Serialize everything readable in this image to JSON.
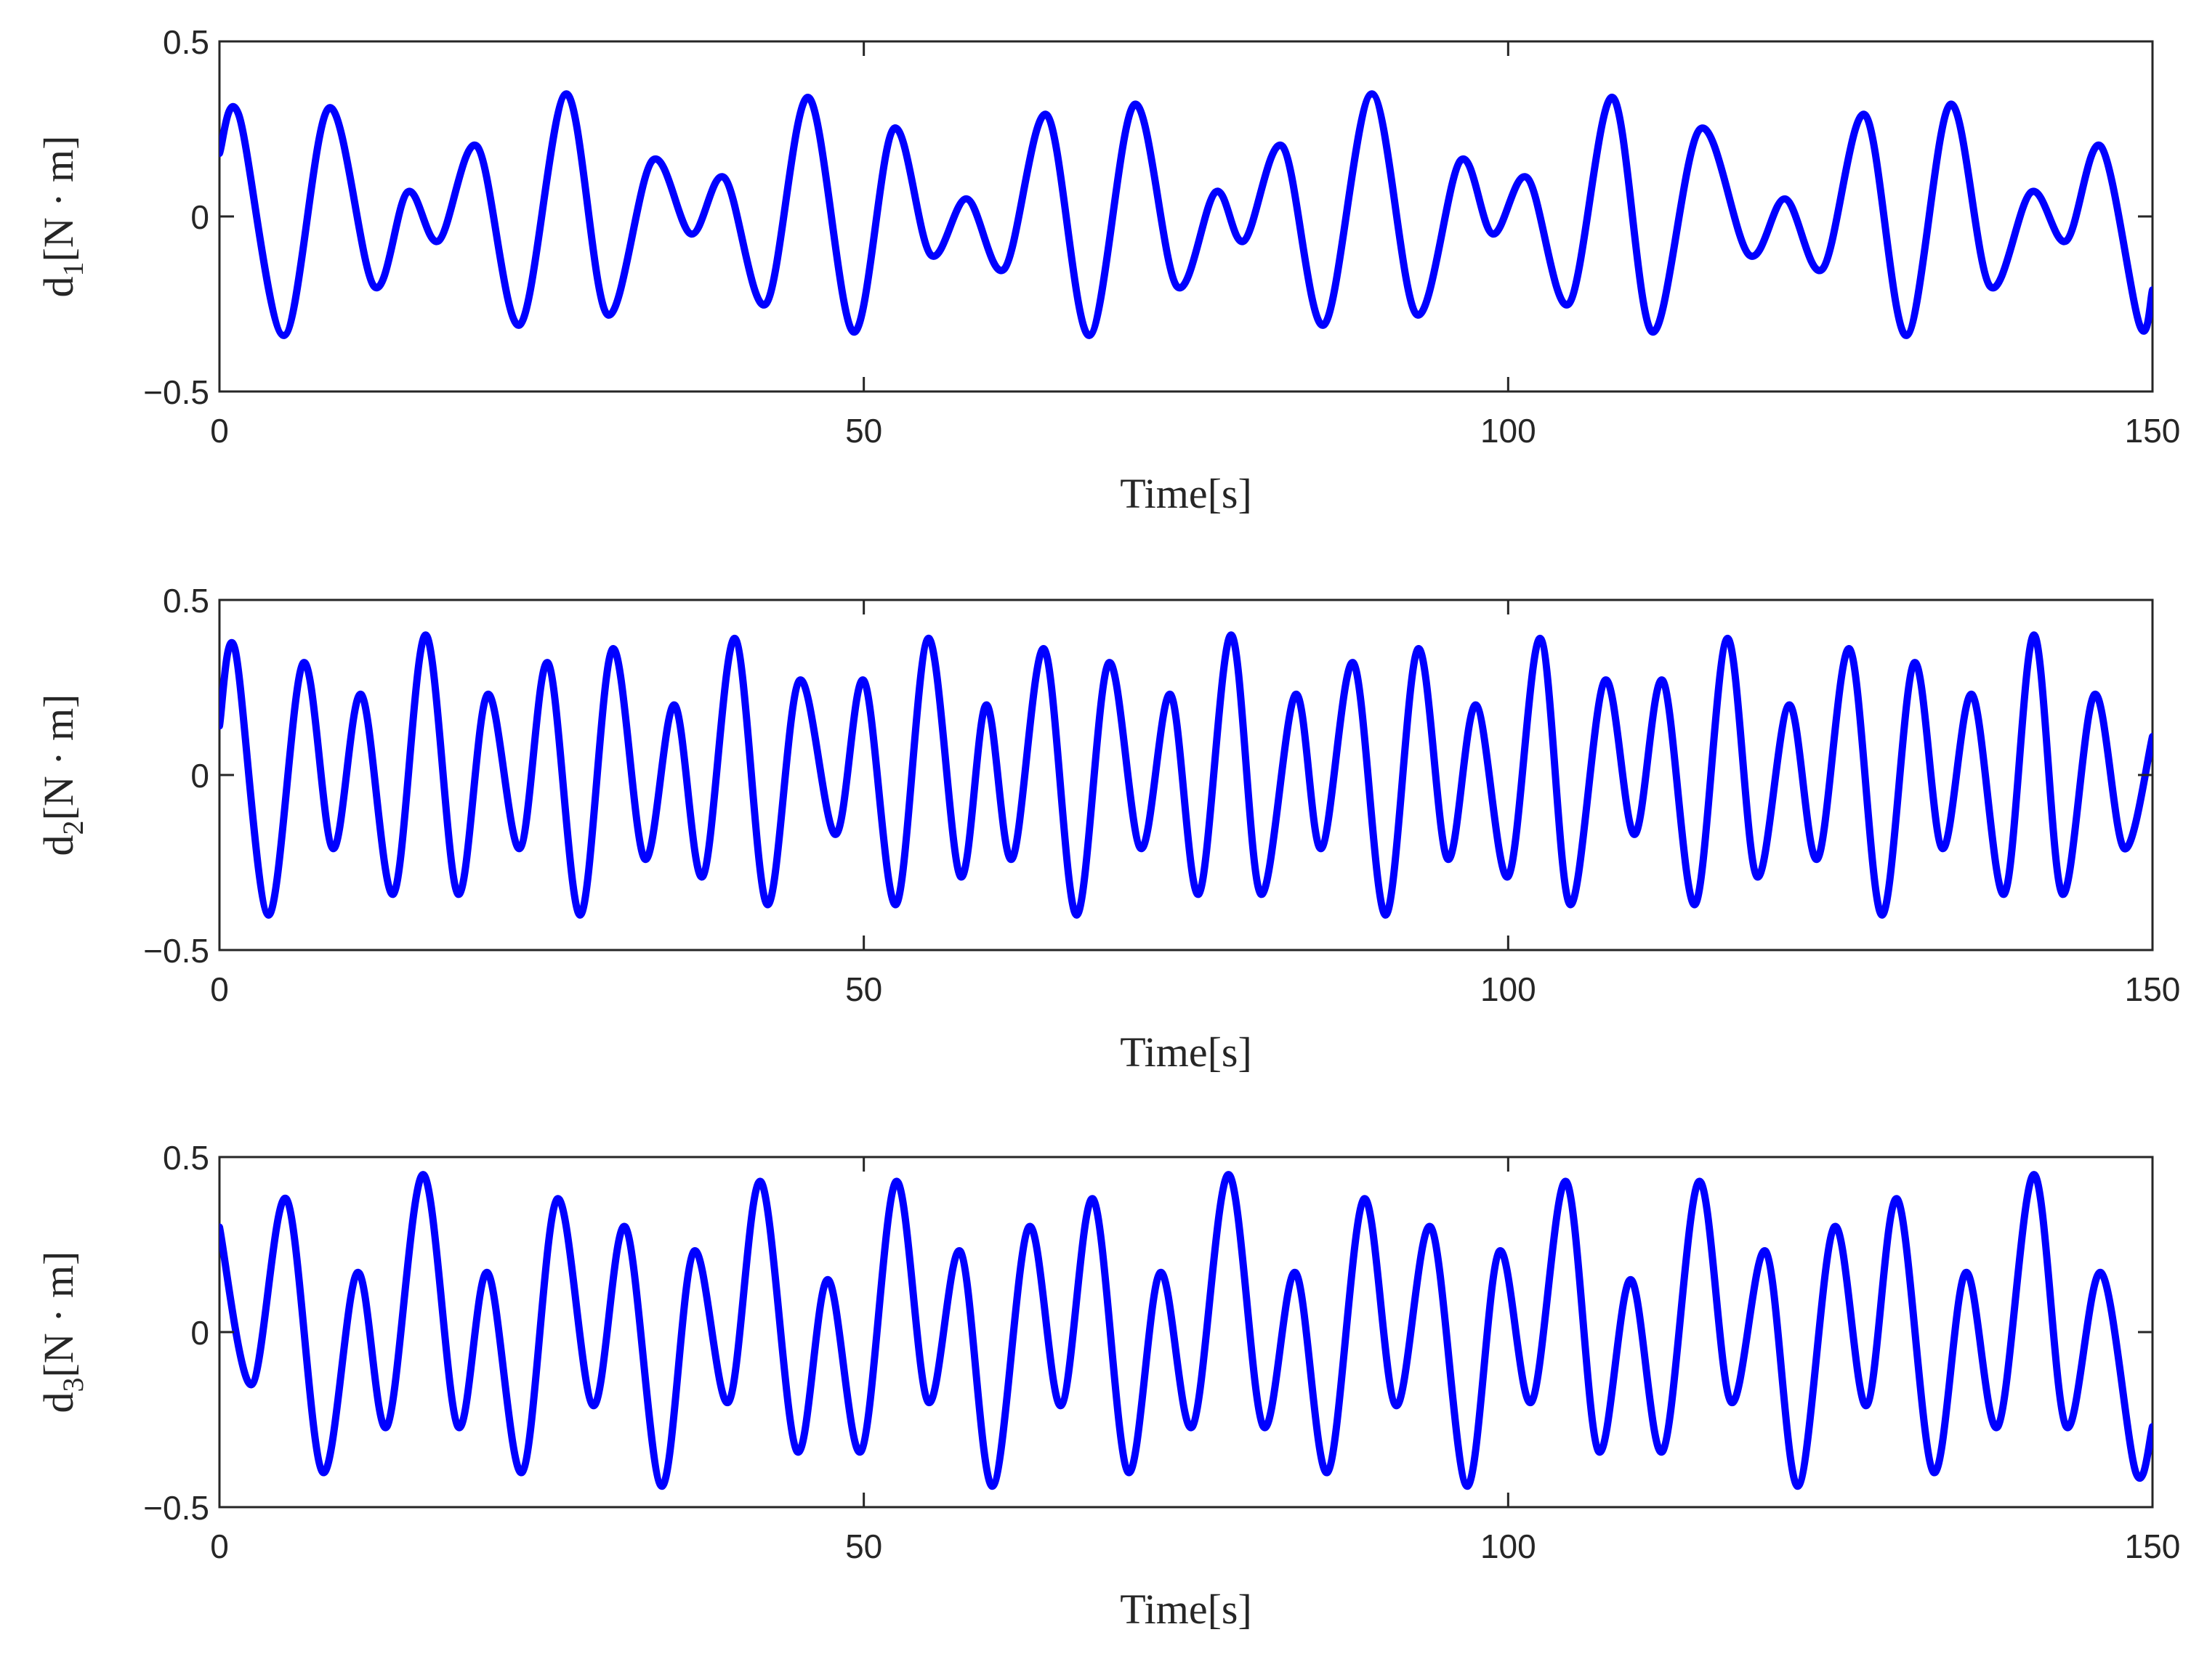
{
  "chart_data": [
    {
      "type": "line",
      "ylabel_main": "d",
      "ylabel_sub": "1",
      "ylabel_unit": "[N · m]",
      "xlabel": "Time[s]",
      "xlim": [
        0,
        150
      ],
      "ylim": [
        -0.5,
        0.5
      ],
      "xticks": [
        0,
        50,
        100,
        150
      ],
      "xtick_labels": [
        "0",
        "50",
        "100",
        "150"
      ],
      "yticks": [
        -0.5,
        0,
        0.5
      ],
      "ytick_labels": [
        "−0.5",
        "0",
        "0.5"
      ],
      "grid": false,
      "color": "#0000ff",
      "x": [
        0,
        1.5,
        5,
        8.5,
        12,
        14.6,
        17,
        20,
        23.3,
        26.9,
        30.1,
        33.6,
        36.6,
        39.2,
        42.4,
        45.7,
        49.2,
        52.3,
        55.2,
        58,
        60.9,
        64.2,
        67.5,
        71,
        74.3,
        77.3,
        79.5,
        82.5,
        85.7,
        89.4,
        92.9,
        96.3,
        98.8,
        101.5,
        104.7,
        108.1,
        111.2,
        114.9,
        118.7,
        121.5,
        124.4,
        127.7,
        130.9,
        134.3,
        137.4,
        140.6,
        143.3,
        146,
        149,
        150
      ],
      "y": [
        0.18,
        0.29,
        -0.34,
        0.31,
        -0.2,
        0.07,
        -0.07,
        0.2,
        -0.31,
        0.35,
        -0.28,
        0.16,
        -0.05,
        0.11,
        -0.25,
        0.34,
        -0.33,
        0.25,
        -0.11,
        0.05,
        -0.15,
        0.29,
        -0.34,
        0.32,
        -0.2,
        0.07,
        -0.07,
        0.2,
        -0.31,
        0.35,
        -0.28,
        0.16,
        -0.05,
        0.11,
        -0.25,
        0.34,
        -0.33,
        0.25,
        -0.11,
        0.05,
        -0.15,
        0.29,
        -0.34,
        0.32,
        -0.2,
        0.07,
        -0.07,
        0.2,
        -0.31,
        -0.21
      ]
    },
    {
      "type": "line",
      "ylabel_main": "d",
      "ylabel_sub": "2",
      "ylabel_unit": "[N · m]",
      "xlabel": "Time[s]",
      "xlim": [
        0,
        150
      ],
      "ylim": [
        -0.5,
        0.5
      ],
      "xticks": [
        0,
        50,
        100,
        150
      ],
      "xtick_labels": [
        "0",
        "50",
        "100",
        "150"
      ],
      "yticks": [
        -0.5,
        0,
        0.5
      ],
      "ytick_labels": [
        "−0.5",
        "0",
        "0.5"
      ],
      "grid": false,
      "color": "#0000ff",
      "x": [
        0,
        1.2,
        3.8,
        6.5,
        8.8,
        11,
        13.5,
        16,
        18.5,
        20.8,
        23.3,
        25.5,
        28,
        30.5,
        33,
        35.3,
        37.5,
        40,
        42.5,
        45,
        47.8,
        50,
        52.5,
        55,
        57.5,
        59.5,
        61.5,
        64,
        66.5,
        69,
        71.5,
        73.8,
        76,
        78.5,
        80.8,
        83.5,
        85.5,
        88,
        90.5,
        93,
        95.3,
        97.5,
        100,
        102.5,
        104.8,
        107.5,
        109.8,
        112,
        114.5,
        117,
        119.3,
        121.8,
        124,
        126.5,
        129,
        131.5,
        133.7,
        136,
        138.5,
        140.8,
        143,
        145.5,
        147.8,
        150
      ],
      "y": [
        0.14,
        0.36,
        -0.4,
        0.32,
        -0.21,
        0.23,
        -0.34,
        0.4,
        -0.34,
        0.23,
        -0.21,
        0.32,
        -0.4,
        0.36,
        -0.24,
        0.2,
        -0.29,
        0.39,
        -0.37,
        0.27,
        -0.17,
        0.27,
        -0.37,
        0.39,
        -0.29,
        0.2,
        -0.24,
        0.36,
        -0.4,
        0.32,
        -0.21,
        0.23,
        -0.34,
        0.4,
        -0.34,
        0.23,
        -0.21,
        0.32,
        -0.4,
        0.36,
        -0.24,
        0.2,
        -0.29,
        0.39,
        -0.37,
        0.27,
        -0.17,
        0.27,
        -0.37,
        0.39,
        -0.29,
        0.2,
        -0.24,
        0.36,
        -0.4,
        0.32,
        -0.21,
        0.23,
        -0.34,
        0.4,
        -0.34,
        0.23,
        -0.21,
        0.11
      ]
    },
    {
      "type": "line",
      "ylabel_main": "d",
      "ylabel_sub": "3",
      "ylabel_unit": "[N · m]",
      "xlabel": "Time[s]",
      "xlim": [
        0,
        150
      ],
      "ylim": [
        -0.5,
        0.5
      ],
      "xticks": [
        0,
        50,
        100,
        150
      ],
      "xtick_labels": [
        "0",
        "50",
        "100",
        "150"
      ],
      "yticks": [
        -0.5,
        0,
        0.5
      ],
      "ytick_labels": [
        "−0.5",
        "0",
        "0.5"
      ],
      "grid": false,
      "color": "#0000ff",
      "x": [
        0,
        2.5,
        5.2,
        8,
        10.7,
        13,
        15.8,
        18.5,
        20.8,
        23.5,
        26.2,
        29,
        31.5,
        34.3,
        36.8,
        39.5,
        42,
        44.8,
        47.2,
        49.8,
        52.5,
        55,
        57.5,
        60,
        62.8,
        65.3,
        67.8,
        70.5,
        73,
        75.5,
        78.3,
        81,
        83.5,
        86,
        88.8,
        91.3,
        94,
        96.8,
        99.3,
        101.8,
        104.5,
        107,
        109.5,
        112,
        114.8,
        117.3,
        120,
        122.5,
        125.3,
        127.8,
        130.2,
        133,
        135.5,
        138,
        140.8,
        143.3,
        146,
        148.7,
        150
      ],
      "y": [
        0.3,
        -0.15,
        0.38,
        -0.4,
        0.17,
        -0.27,
        0.45,
        -0.27,
        0.17,
        -0.4,
        0.38,
        -0.21,
        0.3,
        -0.44,
        0.23,
        -0.2,
        0.43,
        -0.34,
        0.15,
        -0.34,
        0.43,
        -0.2,
        0.23,
        -0.44,
        0.3,
        -0.21,
        0.38,
        -0.4,
        0.17,
        -0.27,
        0.45,
        -0.27,
        0.17,
        -0.4,
        0.38,
        -0.21,
        0.3,
        -0.44,
        0.23,
        -0.2,
        0.43,
        -0.34,
        0.15,
        -0.34,
        0.43,
        -0.2,
        0.23,
        -0.44,
        0.3,
        -0.21,
        0.38,
        -0.4,
        0.17,
        -0.27,
        0.45,
        -0.27,
        0.17,
        -0.4,
        -0.27
      ]
    }
  ]
}
